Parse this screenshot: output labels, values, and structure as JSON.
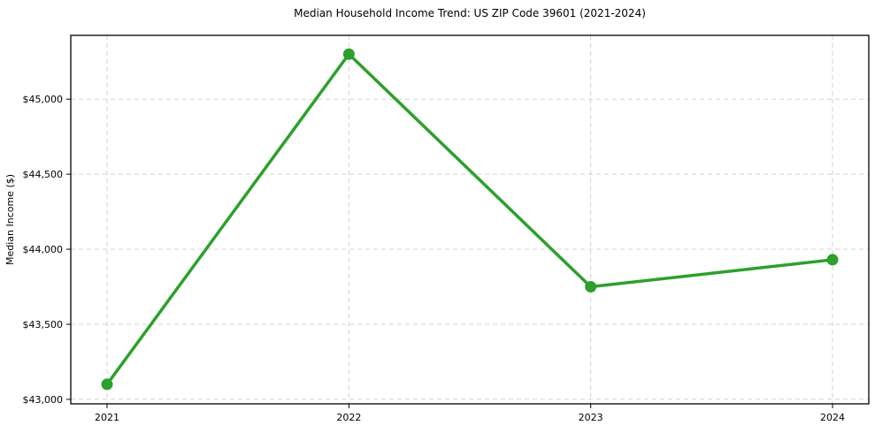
{
  "chart_data": {
    "type": "line",
    "title": "Median Household Income Trend: US ZIP Code 39601 (2021-2024)",
    "xlabel": "",
    "ylabel": "Median Income ($)",
    "x": [
      2021,
      2022,
      2023,
      2024
    ],
    "x_tick_labels": [
      "2021",
      "2022",
      "2023",
      "2024"
    ],
    "values": [
      43100,
      45300,
      43750,
      43930
    ],
    "y_ticks": [
      43000,
      43500,
      44000,
      44500,
      45000
    ],
    "y_tick_labels": [
      "$43,000",
      "$43,500",
      "$44,000",
      "$44,500",
      "$45,000"
    ],
    "ylim": [
      42970,
      45425
    ],
    "grid": true,
    "grid_style": "dashed",
    "legend_position": "none",
    "line_color": "#2ca02c",
    "marker": "circle",
    "background_color": "#ffffff"
  }
}
